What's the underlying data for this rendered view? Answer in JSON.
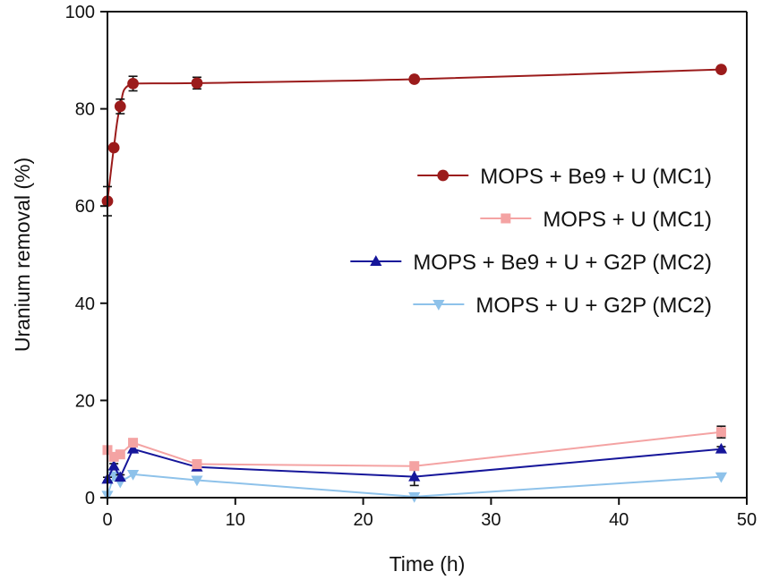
{
  "chart_data": {
    "type": "line",
    "title": "",
    "xlabel": "Time (h)",
    "ylabel": "Uranium removal (%)",
    "xlim": [
      0,
      50
    ],
    "ylim": [
      0,
      100
    ],
    "xticks": [
      0,
      10,
      20,
      30,
      40,
      50
    ],
    "yticks": [
      0,
      20,
      40,
      60,
      80,
      100
    ],
    "grid": false,
    "legend_position": "center-right",
    "series": [
      {
        "name": "MOPS + Be9 + U (MC1)",
        "color": "#9b1b1b",
        "marker": "circle",
        "curve": "smooth",
        "x": [
          0,
          0.5,
          1,
          2,
          7,
          24,
          48
        ],
        "y": [
          61,
          72,
          80.5,
          85.2,
          85.3,
          86.1,
          88.1
        ],
        "err": [
          3,
          0.5,
          1.5,
          1.5,
          1.2,
          0.5,
          0.5
        ]
      },
      {
        "name": "MOPS + U (MC1)",
        "color": "#f4a3a3",
        "marker": "square",
        "curve": "linear",
        "x": [
          0,
          0.5,
          1,
          2,
          7,
          24,
          48
        ],
        "y": [
          9.8,
          8.4,
          8.9,
          11.3,
          6.9,
          6.5,
          13.5
        ],
        "err": [
          0.5,
          0.5,
          0.5,
          0.5,
          0.5,
          0.5,
          1.2
        ]
      },
      {
        "name": "MOPS + Be9 + U + G2P (MC2)",
        "color": "#16169a",
        "marker": "triangle-up",
        "curve": "linear",
        "x": [
          0,
          0.5,
          1,
          2,
          7,
          24,
          48
        ],
        "y": [
          3.8,
          6.5,
          4.2,
          10,
          6.3,
          4.3,
          10
        ],
        "err": [
          0.4,
          0.5,
          0.5,
          0.5,
          0.5,
          1.8,
          0.5
        ]
      },
      {
        "name": "MOPS + U + G2P (MC2)",
        "color": "#8ec2ea",
        "marker": "triangle-down",
        "curve": "linear",
        "x": [
          0,
          0.5,
          1,
          2,
          7,
          24,
          48
        ],
        "y": [
          0.5,
          4.5,
          3.2,
          4.8,
          3.6,
          0.2,
          4.3
        ],
        "err": [
          0,
          0,
          0,
          0,
          0,
          0,
          0
        ]
      }
    ]
  }
}
